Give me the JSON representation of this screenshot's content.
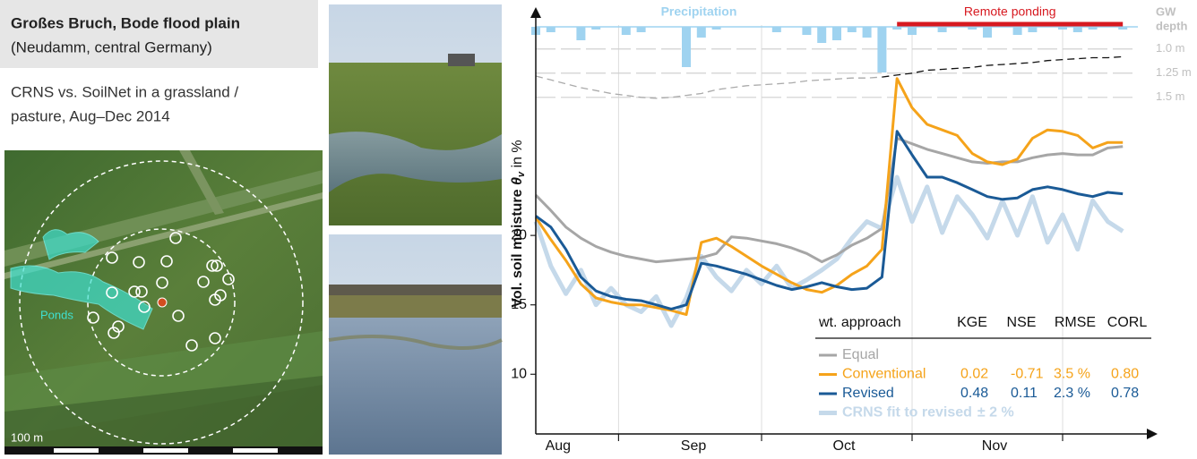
{
  "header": {
    "title": "Großes Bruch, Bode flood plain",
    "subtitle": "(Neudamm, central Germany)"
  },
  "description": [
    "CRNS vs. SoilNet in a grassland /",
    "pasture,  Aug–Dec 2014"
  ],
  "map": {
    "pond_label": "Ponds",
    "scale_label": "100 m"
  },
  "chart_data": {
    "type": "line",
    "y_label": {
      "main": "Vol. soil moisture ",
      "symbol": "θ",
      "sub": "v",
      "unit": " in %"
    },
    "categories": [
      null,
      "Aug",
      null,
      null,
      null,
      null,
      null,
      null,
      null,
      null,
      "Sep",
      null,
      null,
      null,
      null,
      null,
      null,
      null,
      null,
      null,
      "Oct",
      null,
      null,
      null,
      null,
      null,
      null,
      null,
      null,
      null,
      "Nov",
      null,
      null,
      null,
      null,
      null,
      null,
      null,
      null,
      null
    ],
    "ylim": [
      5.7,
      35.8
    ],
    "yticks": [
      10,
      15,
      20
    ],
    "grid": true,
    "legend_columns": [
      "wt. approach",
      "KGE",
      "NSE",
      "RMSE",
      "CORL"
    ],
    "series": [
      {
        "name": "CRNS fit to revised",
        "note": "± 2 %",
        "color": "#c5d9ea",
        "width": 5,
        "values": [
          21.0,
          17.8,
          15.8,
          17.5,
          15.0,
          16.2,
          15.0,
          14.5,
          15.6,
          13.5,
          15.5,
          18.5,
          17.0,
          16.0,
          17.5,
          16.5,
          17.8,
          16.2,
          16.8,
          17.5,
          18.3,
          19.8,
          21.0,
          20.5,
          24.2,
          21.0,
          23.5,
          20.2,
          22.8,
          21.5,
          19.8,
          22.5,
          20.0,
          22.8,
          19.5,
          21.5,
          19.0,
          22.5,
          21.0,
          20.3
        ]
      },
      {
        "name": "Equal",
        "color": "#a6a6a6",
        "width": 3,
        "values": [
          22.9,
          21.8,
          20.6,
          19.8,
          19.2,
          18.8,
          18.5,
          18.3,
          18.1,
          18.2,
          18.3,
          18.4,
          18.7,
          19.9,
          19.8,
          19.6,
          19.4,
          19.1,
          18.7,
          18.1,
          18.6,
          19.3,
          19.8,
          20.5,
          27.0,
          26.6,
          26.2,
          25.9,
          25.6,
          25.3,
          25.2,
          25.3,
          25.3,
          25.6,
          25.8,
          25.9,
          25.8,
          25.8,
          26.3,
          26.4
        ]
      },
      {
        "name": "Conventional",
        "color": "#f5a31a",
        "width": 3,
        "stats": [
          "0.02",
          "-0.71",
          "3.5 %",
          "0.80"
        ],
        "values": [
          21.3,
          19.7,
          18.2,
          16.5,
          15.5,
          15.2,
          15.0,
          15.0,
          14.8,
          14.6,
          14.3,
          19.5,
          19.8,
          19.2,
          18.5,
          17.8,
          17.2,
          16.6,
          16.1,
          15.9,
          16.4,
          17.2,
          17.8,
          19.0,
          31.3,
          29.2,
          28.0,
          27.6,
          27.2,
          25.9,
          25.3,
          25.1,
          25.5,
          27.0,
          27.6,
          27.5,
          27.2,
          26.3,
          26.7,
          26.7
        ]
      },
      {
        "name": "Revised",
        "color": "#1a5a96",
        "width": 3,
        "stats": [
          "0.48",
          "0.11",
          "2.3 %",
          "0.78"
        ],
        "values": [
          21.4,
          20.6,
          19.0,
          17.0,
          16.0,
          15.6,
          15.4,
          15.3,
          15.0,
          14.7,
          15.0,
          18.0,
          17.8,
          17.5,
          17.2,
          16.8,
          16.4,
          16.1,
          16.3,
          16.6,
          16.3,
          16.1,
          16.2,
          17.0,
          27.5,
          25.8,
          24.2,
          24.2,
          23.8,
          23.3,
          22.8,
          22.6,
          22.7,
          23.3,
          23.5,
          23.3,
          23.0,
          22.8,
          23.1,
          23.0
        ]
      }
    ],
    "precipitation": {
      "name": "Precipitation",
      "color": "#9fd3f0",
      "y3lim": [
        0,
        30
      ],
      "values": [
        3,
        2,
        0,
        5,
        1,
        0,
        3,
        2,
        0,
        0,
        15,
        4,
        1,
        0,
        0,
        0,
        2,
        0,
        3,
        6,
        5,
        2,
        4,
        17,
        1,
        3,
        0,
        2,
        0,
        1,
        4,
        0,
        3,
        2,
        0,
        1,
        2,
        1,
        0,
        1
      ]
    },
    "ponding": {
      "label": "Remote ponding",
      "color": "#d71920",
      "span": [
        24,
        39
      ]
    },
    "groundwater": {
      "label": [
        "GW",
        "depth"
      ],
      "y2lim": [
        4.98,
        0.66
      ],
      "y2ticks": [
        {
          "value": 1.0,
          "label": "1.0 m"
        },
        {
          "value": 1.25,
          "label": "1.25 m"
        },
        {
          "value": 1.5,
          "label": "1.5 m"
        }
      ],
      "series": [
        {
          "color": "#aaaaaa",
          "values": [
            1.28,
            1.32,
            1.36,
            1.4,
            1.43,
            1.46,
            1.48,
            1.5,
            1.51,
            1.5,
            1.48,
            1.46,
            1.42,
            1.4,
            1.38,
            1.37,
            1.36,
            1.35,
            1.33,
            1.32,
            1.31,
            1.3,
            1.3,
            1.29,
            null,
            null,
            null,
            null,
            null,
            null,
            null,
            null,
            null,
            null,
            null,
            null,
            null,
            null,
            null,
            null
          ]
        },
        {
          "color": "#111111",
          "values": [
            null,
            null,
            null,
            null,
            null,
            null,
            null,
            null,
            null,
            null,
            null,
            null,
            null,
            null,
            null,
            null,
            null,
            null,
            null,
            null,
            null,
            null,
            null,
            1.29,
            1.27,
            1.25,
            1.22,
            1.21,
            1.2,
            1.19,
            1.17,
            1.16,
            1.15,
            1.14,
            1.12,
            1.11,
            1.1,
            1.09,
            1.09,
            1.08
          ]
        }
      ]
    }
  }
}
